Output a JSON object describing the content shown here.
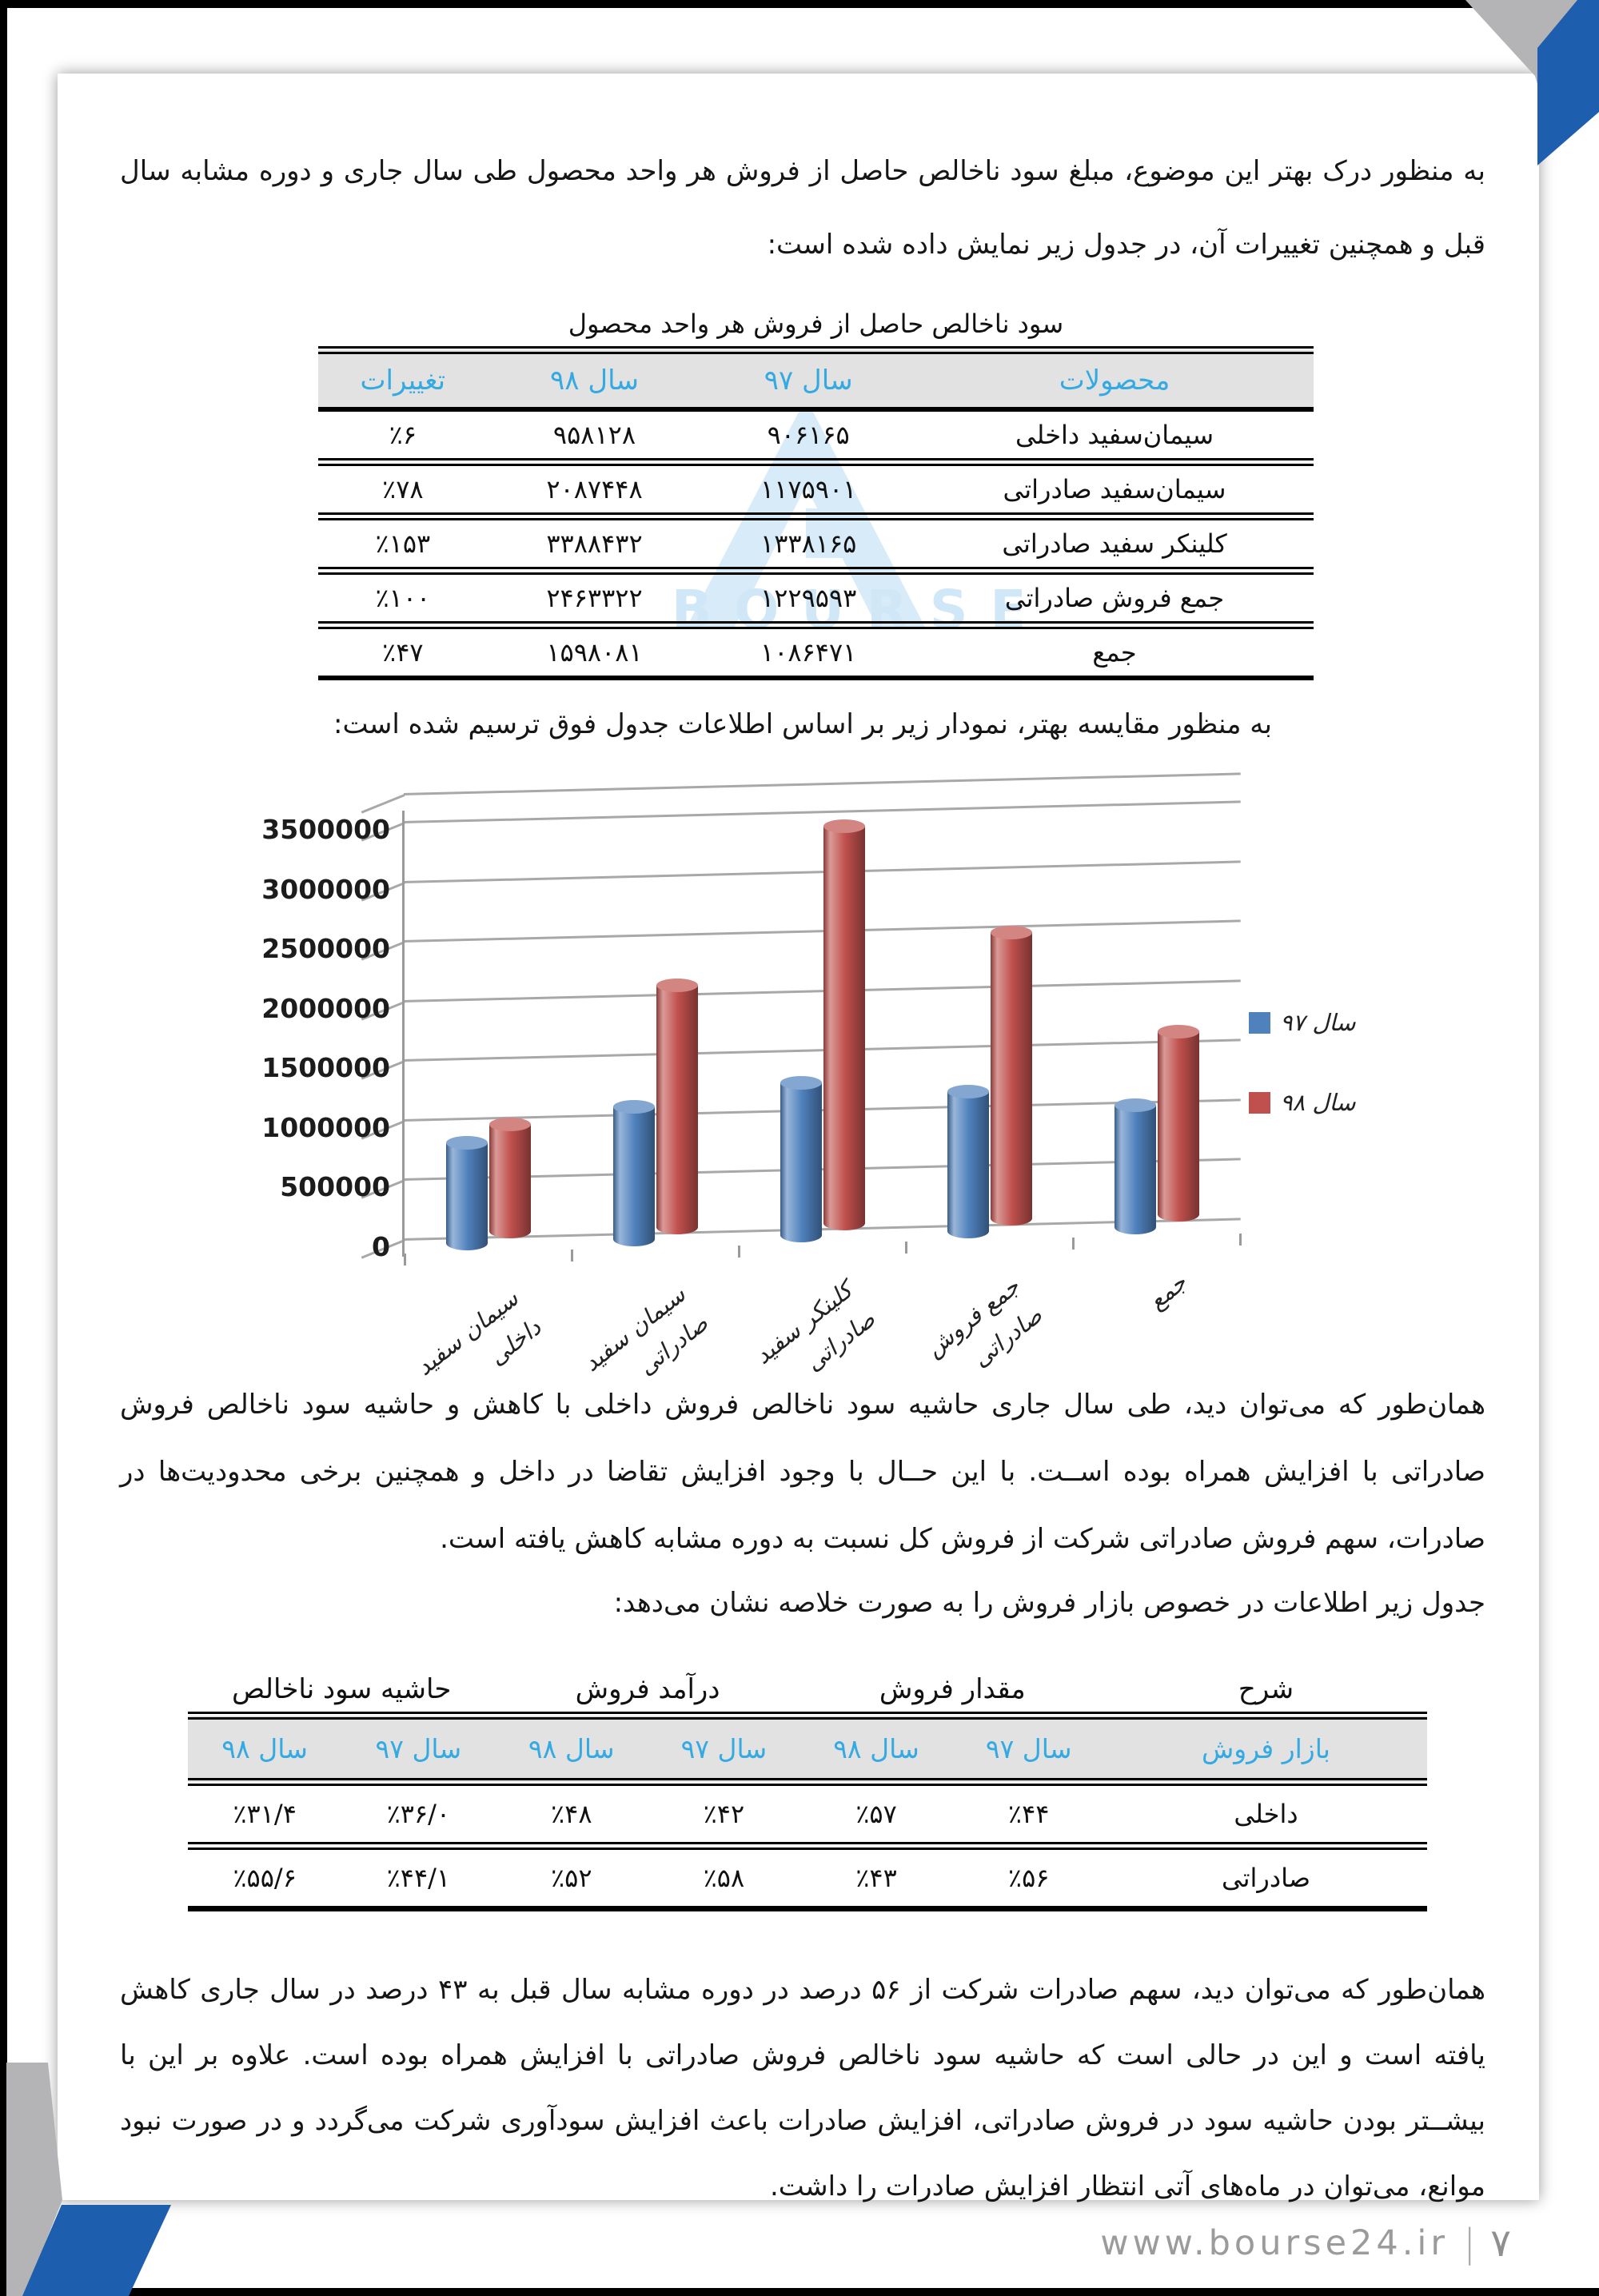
{
  "page": {
    "background": "#ffffff",
    "edge_color": "#000000",
    "corner_colors": {
      "blue": "#1d5fae",
      "gray": "#b4b4b6"
    },
    "footer": {
      "url": "www.bourse24.ir",
      "separator": "|",
      "page_number": "۷"
    }
  },
  "watermark": {
    "letters": "BOURSE",
    "color": "#cfe7f7"
  },
  "paragraphs": {
    "p1": "به منظور درک بهتر این موضوع، مبلغ سود ناخالص حاصل از فروش هر واحد محصول طی سال جاری و دوره مشابه سال قبل و همچنین تغییرات آن، در جدول زیر نمایش داده شده است:",
    "chart_intro": "به منظور مقایسه بهتر، نمودار زیر بر اساس اطلاعات جدول فوق ترسیم شده است:",
    "p2": "همان‌طور که می‌توان دید، طی سال جاری حاشیه سود ناخالص فروش داخلی با کاهش و حاشیه سود ناخالص فروش صادراتی با افزایش همراه بوده اســت. با این حــال با وجود افزایش تقاضا در داخل و همچنین برخی محدودیت‌ها در صادرات، سهم فروش صادراتی شرکت از فروش کل نسبت به دوره مشابه کاهش یافته است.",
    "p2b": "جدول زیر اطلاعات در خصوص بازار فروش را به صورت خلاصه نشان می‌دهد:",
    "p3": "همان‌طور که می‌توان دید، سهم صادرات شرکت از ۵۶ درصد در دوره مشابه سال قبل به ۴۳ درصد در سال جاری کاهش یافته است و این در حالی است که حاشیه سود ناخالص فروش صادراتی با افزایش همراه بوده است. علاوه بر این با بیشــتر بودن حاشیه سود در فروش صادراتی، افزایش صادرات باعث افزایش سودآوری شرکت می‌گردد و در صورت نبود موانع، می‌توان در ماه‌های آتی انتظار افزایش صادرات را داشت."
  },
  "table1": {
    "title": "سود ناخالص حاصل از فروش هر واحد محصول",
    "header_text_color": "#35aae2",
    "header_bg": "#e2e2e2",
    "headers": [
      "محصولات",
      "سال ۹۷",
      "سال ۹۸",
      "تغییرات"
    ],
    "rows": [
      [
        "سیمان‌سفید داخلی",
        "۹۰۶۱۶۵",
        "۹۵۸۱۲۸",
        "٪۶"
      ],
      [
        "سیمان‌سفید صادراتی",
        "۱۱۷۵۹۰۱",
        "۲۰۸۷۴۴۸",
        "٪۷۸"
      ],
      [
        "کلینکر سفید صادراتی",
        "۱۳۳۸۱۶۵",
        "۳۳۸۸۴۳۲",
        "٪۱۵۳"
      ],
      [
        "جمع فروش صادراتی",
        "۱۲۲۹۵۹۳",
        "۲۴۶۳۳۲۲",
        "٪۱۰۰"
      ],
      [
        "جمع",
        "۱۰۸۶۴۷۱",
        "۱۵۹۸۰۸۱",
        "٪۴۷"
      ]
    ]
  },
  "chart_data": {
    "type": "bar",
    "style": "3d-cylinder",
    "title": "",
    "categories": [
      "سیمان سفید\nداخلی",
      "سیمان سفید\nصادراتی",
      "کلینکر سفید\nصادراتی",
      "جمع فروش\nصادراتی",
      "جمع"
    ],
    "series": [
      {
        "name": "سال ۹۷",
        "color": "#4f81bd",
        "values": [
          906165,
          1175901,
          1338165,
          1229593,
          1086471
        ]
      },
      {
        "name": "سال ۹۸",
        "color": "#c0504d",
        "values": [
          958128,
          2087448,
          3388432,
          2463322,
          1598081
        ]
      }
    ],
    "ylim": [
      0,
      3500000
    ],
    "ytick_step": 500000,
    "ytick_labels": [
      "0",
      "500000",
      "1000000",
      "1500000",
      "2000000",
      "2500000",
      "3000000",
      "3500000"
    ],
    "legend_position": "right",
    "grid": true
  },
  "table2": {
    "group_headers": [
      {
        "label": "شرح",
        "colspan": 1
      },
      {
        "label": "مقدار فروش",
        "colspan": 2
      },
      {
        "label": "درآمد فروش",
        "colspan": 2
      },
      {
        "label": "حاشیه سود ناخالص",
        "colspan": 2
      }
    ],
    "sub_headers": [
      "بازار فروش",
      "سال ۹۷",
      "سال ۹۸",
      "سال ۹۷",
      "سال ۹۸",
      "سال ۹۷",
      "سال ۹۸"
    ],
    "rows": [
      [
        "داخلی",
        "٪۴۴",
        "٪۵۷",
        "٪۴۲",
        "٪۴۸",
        "٪۳۶/۰",
        "٪۳۱/۴"
      ],
      [
        "صادراتی",
        "٪۵۶",
        "٪۴۳",
        "٪۵۸",
        "٪۵۲",
        "٪۴۴/۱",
        "٪۵۵/۶"
      ]
    ]
  }
}
